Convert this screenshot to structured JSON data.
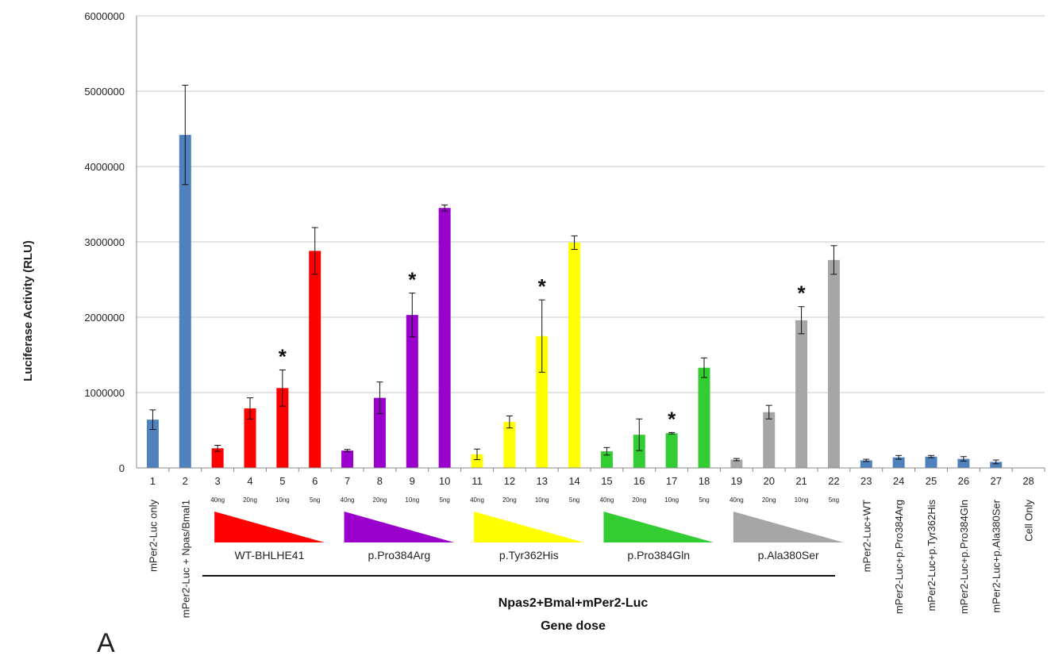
{
  "chart_data": {
    "type": "bar",
    "ylabel": "Luciferase Activity (RLU)",
    "xlabel_lines": [
      "Npas2+Bmal+mPer2-Luc",
      "Gene dose"
    ],
    "panel_label": "A",
    "ylim": [
      0,
      6000000
    ],
    "yticks": [
      "0",
      "1000000",
      "2000000",
      "3000000",
      "4000000",
      "5000000",
      "6000000"
    ],
    "grid": true,
    "colors": {
      "blue": "#4f81bd",
      "red": "#ff0000",
      "purple": "#9900cc",
      "yellow": "#ffff00",
      "green": "#33cc33",
      "gray": "#a6a6a6",
      "axis": "#888888",
      "grid": "#c8c8c8"
    },
    "bars": [
      {
        "x": "1",
        "value": 640000,
        "error": 130000,
        "color": "blue",
        "dose": "",
        "star": false
      },
      {
        "x": "2",
        "value": 4420000,
        "error": 660000,
        "color": "blue",
        "dose": "",
        "star": false
      },
      {
        "x": "3",
        "value": 260000,
        "error": 40000,
        "color": "red",
        "dose": "40ng",
        "star": false
      },
      {
        "x": "4",
        "value": 790000,
        "error": 140000,
        "color": "red",
        "dose": "20ng",
        "star": false
      },
      {
        "x": "5",
        "value": 1060000,
        "error": 240000,
        "color": "red",
        "dose": "10ng",
        "star": true
      },
      {
        "x": "6",
        "value": 2880000,
        "error": 310000,
        "color": "red",
        "dose": "5ng",
        "star": false
      },
      {
        "x": "7",
        "value": 230000,
        "error": 15000,
        "color": "purple",
        "dose": "40ng",
        "star": false
      },
      {
        "x": "8",
        "value": 930000,
        "error": 210000,
        "color": "purple",
        "dose": "20ng",
        "star": false
      },
      {
        "x": "9",
        "value": 2030000,
        "error": 290000,
        "color": "purple",
        "dose": "10ng",
        "star": true
      },
      {
        "x": "10",
        "value": 3450000,
        "error": 40000,
        "color": "purple",
        "dose": "5ng",
        "star": false
      },
      {
        "x": "11",
        "value": 180000,
        "error": 70000,
        "color": "yellow",
        "dose": "40ng",
        "star": false
      },
      {
        "x": "12",
        "value": 610000,
        "error": 80000,
        "color": "yellow",
        "dose": "20ng",
        "star": false
      },
      {
        "x": "13",
        "value": 1750000,
        "error": 480000,
        "color": "yellow",
        "dose": "10ng",
        "star": true
      },
      {
        "x": "14",
        "value": 2990000,
        "error": 90000,
        "color": "yellow",
        "dose": "5ng",
        "star": false
      },
      {
        "x": "15",
        "value": 220000,
        "error": 50000,
        "color": "green",
        "dose": "40ng",
        "star": false
      },
      {
        "x": "16",
        "value": 440000,
        "error": 210000,
        "color": "green",
        "dose": "20ng",
        "star": false
      },
      {
        "x": "17",
        "value": 460000,
        "error": 10000,
        "color": "green",
        "dose": "10ng",
        "star": true
      },
      {
        "x": "18",
        "value": 1330000,
        "error": 130000,
        "color": "green",
        "dose": "5ng",
        "star": false
      },
      {
        "x": "19",
        "value": 110000,
        "error": 15000,
        "color": "gray",
        "dose": "40ng",
        "star": false
      },
      {
        "x": "20",
        "value": 740000,
        "error": 90000,
        "color": "gray",
        "dose": "20ng",
        "star": false
      },
      {
        "x": "21",
        "value": 1960000,
        "error": 180000,
        "color": "gray",
        "dose": "10ng",
        "star": true
      },
      {
        "x": "22",
        "value": 2760000,
        "error": 190000,
        "color": "gray",
        "dose": "5ng",
        "star": false
      },
      {
        "x": "23",
        "value": 100000,
        "error": 15000,
        "color": "blue",
        "dose": "",
        "star": false
      },
      {
        "x": "24",
        "value": 140000,
        "error": 25000,
        "color": "blue",
        "dose": "",
        "star": false
      },
      {
        "x": "25",
        "value": 150000,
        "error": 15000,
        "color": "blue",
        "dose": "",
        "star": false
      },
      {
        "x": "26",
        "value": 120000,
        "error": 30000,
        "color": "blue",
        "dose": "",
        "star": false
      },
      {
        "x": "27",
        "value": 80000,
        "error": 25000,
        "color": "blue",
        "dose": "",
        "star": false
      },
      {
        "x": "28",
        "value": 0,
        "error": 0,
        "color": "blue",
        "dose": "",
        "star": false
      }
    ],
    "star_symbol": "*",
    "condition_labels": [
      {
        "x": "1",
        "text": "mPer2-Luc only"
      },
      {
        "x": "2",
        "text": "mPer2-Luc + Npas/Bmal1"
      },
      {
        "x": "23",
        "text": "mPer2-Luc+WT"
      },
      {
        "x": "24",
        "text": "mPer2-Luc+p.Pro384Arg"
      },
      {
        "x": "25",
        "text": "mPer2-Luc+p.Tyr362His"
      },
      {
        "x": "26",
        "text": "mPer2-Luc+p.Pro384Gln"
      },
      {
        "x": "27",
        "text": "mPer2-Luc+p.Ala380Ser"
      },
      {
        "x": "28",
        "text": "Cell Only"
      }
    ],
    "groups": [
      {
        "name": "WT-BHLHE41",
        "first": "3",
        "last": "6",
        "color": "red"
      },
      {
        "name": "p.Pro384Arg",
        "first": "7",
        "last": "10",
        "color": "purple"
      },
      {
        "name": "p.Tyr362His",
        "first": "11",
        "last": "14",
        "color": "yellow"
      },
      {
        "name": "p.Pro384Gln",
        "first": "15",
        "last": "18",
        "color": "green"
      },
      {
        "name": "p.Ala380Ser",
        "first": "19",
        "last": "22",
        "color": "gray"
      }
    ]
  }
}
